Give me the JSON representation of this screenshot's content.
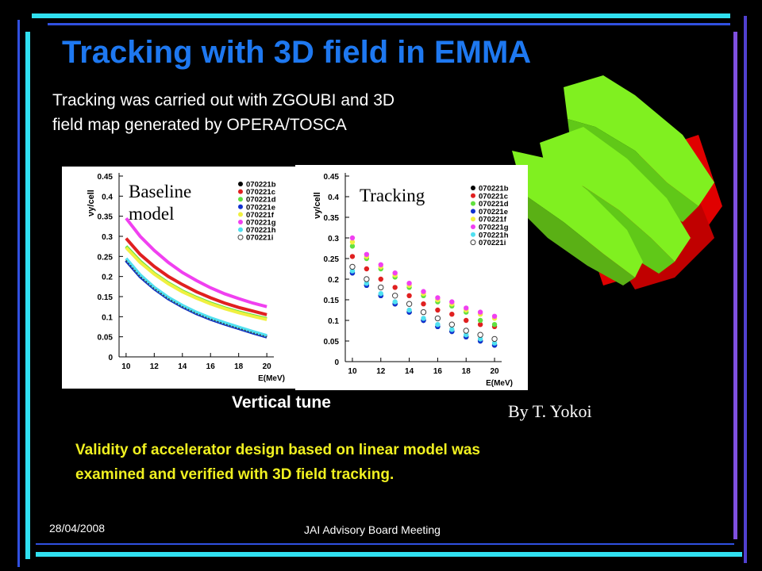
{
  "slide": {
    "title": "Tracking with 3D field in EMMA",
    "intro": [
      "Tracking  was carried out with ZGOUBI and 3D",
      "field map generated by OPERA/TOSCA"
    ],
    "caption": "Vertical tune",
    "credit": "By T. Yokoi",
    "conclusion": [
      "Validity of accelerator design based on linear model was",
      "examined and verified with 3D field tracking."
    ],
    "date": "28/04/2008",
    "footer": "JAI Advisory Board Meeting"
  },
  "chart_data": [
    {
      "type": "line",
      "title": "Baseline model",
      "xlabel": "E(MeV)",
      "ylabel": "νy/cell",
      "x": [
        10,
        11,
        12,
        13,
        14,
        15,
        16,
        17,
        18,
        19,
        20
      ],
      "xlim": [
        9.5,
        20.5
      ],
      "xticks": [
        10,
        12,
        14,
        16,
        18,
        20
      ],
      "ylim": [
        0,
        0.45
      ],
      "yticks": [
        0,
        0.05,
        0.1,
        0.15,
        0.2,
        0.25,
        0.3,
        0.35,
        0.4,
        0.45
      ],
      "series": [
        {
          "name": "070221b",
          "color": "#000000",
          "values": [
            0.24,
            0.2,
            0.17,
            0.145,
            0.125,
            0.108,
            0.094,
            0.082,
            0.071,
            0.06,
            0.05
          ]
        },
        {
          "name": "070221c",
          "color": "#e02020",
          "values": [
            0.295,
            0.255,
            0.225,
            0.2,
            0.18,
            0.162,
            0.147,
            0.134,
            0.123,
            0.114,
            0.105
          ]
        },
        {
          "name": "070221d",
          "color": "#60e040",
          "values": [
            0.275,
            0.238,
            0.208,
            0.184,
            0.164,
            0.148,
            0.134,
            0.122,
            0.112,
            0.103,
            0.095
          ]
        },
        {
          "name": "070221e",
          "color": "#1030d0",
          "values": [
            0.24,
            0.2,
            0.17,
            0.145,
            0.125,
            0.108,
            0.094,
            0.082,
            0.071,
            0.06,
            0.05
          ]
        },
        {
          "name": "070221f",
          "color": "#f0f040",
          "values": [
            0.272,
            0.235,
            0.206,
            0.182,
            0.162,
            0.146,
            0.132,
            0.12,
            0.11,
            0.101,
            0.093
          ]
        },
        {
          "name": "070221g",
          "color": "#f040f0",
          "values": [
            0.345,
            0.3,
            0.265,
            0.235,
            0.21,
            0.19,
            0.172,
            0.157,
            0.145,
            0.134,
            0.125
          ]
        },
        {
          "name": "070221h",
          "color": "#50e0f0",
          "values": [
            0.245,
            0.204,
            0.173,
            0.148,
            0.128,
            0.111,
            0.097,
            0.085,
            0.074,
            0.063,
            0.053
          ]
        },
        {
          "name": "070221i",
          "color": "#404040",
          "hollow": true,
          "values": [
            0.24,
            0.2,
            0.17,
            0.145,
            0.125,
            0.108,
            0.094,
            0.082,
            0.071,
            0.06,
            0.05
          ]
        }
      ]
    },
    {
      "type": "scatter",
      "title": "Tracking",
      "xlabel": "E(MeV)",
      "ylabel": "νy/cell",
      "x": [
        10,
        11,
        12,
        13,
        14,
        15,
        16,
        17,
        18,
        19,
        20
      ],
      "xlim": [
        9.5,
        20.5
      ],
      "xticks": [
        10,
        12,
        14,
        16,
        18,
        20
      ],
      "ylim": [
        0,
        0.45
      ],
      "yticks": [
        0,
        0.05,
        0.1,
        0.15,
        0.2,
        0.25,
        0.3,
        0.35,
        0.4,
        0.45
      ],
      "series": [
        {
          "name": "070221b",
          "color": "#000000",
          "values": [
            0.215,
            0.185,
            0.16,
            0.14,
            0.12,
            0.1,
            0.085,
            0.073,
            0.06,
            0.05,
            0.04
          ]
        },
        {
          "name": "070221c",
          "color": "#e02020",
          "values": [
            0.255,
            0.225,
            0.2,
            0.18,
            0.16,
            0.14,
            0.125,
            0.115,
            0.1,
            0.09,
            0.085
          ]
        },
        {
          "name": "070221d",
          "color": "#60e040",
          "values": [
            0.28,
            0.25,
            0.225,
            0.205,
            0.18,
            0.16,
            0.145,
            0.135,
            0.12,
            0.1,
            0.09
          ]
        },
        {
          "name": "070221e",
          "color": "#1030d0",
          "values": [
            0.215,
            0.185,
            0.16,
            0.14,
            0.12,
            0.1,
            0.085,
            0.073,
            0.06,
            0.05,
            0.04
          ]
        },
        {
          "name": "070221f",
          "color": "#f0f040",
          "values": [
            0.29,
            0.255,
            0.23,
            0.21,
            0.185,
            0.165,
            0.15,
            0.14,
            0.125,
            0.115,
            0.105
          ]
        },
        {
          "name": "070221g",
          "color": "#f040f0",
          "values": [
            0.3,
            0.26,
            0.235,
            0.215,
            0.19,
            0.17,
            0.155,
            0.145,
            0.13,
            0.12,
            0.11
          ]
        },
        {
          "name": "070221h",
          "color": "#50e0f0",
          "values": [
            0.22,
            0.19,
            0.165,
            0.145,
            0.125,
            0.105,
            0.09,
            0.078,
            0.065,
            0.055,
            0.045
          ]
        },
        {
          "name": "070221i",
          "color": "#404040",
          "hollow": true,
          "values": [
            0.23,
            0.2,
            0.18,
            0.16,
            0.14,
            0.12,
            0.105,
            0.09,
            0.075,
            0.065,
            0.055
          ]
        }
      ]
    }
  ]
}
